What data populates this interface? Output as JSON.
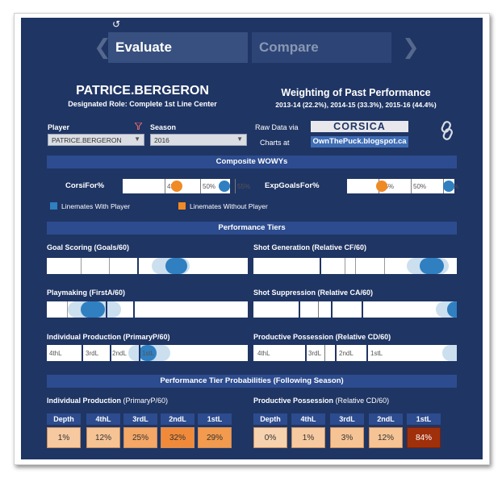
{
  "nav": {
    "undo_glyph": "↺",
    "prev_glyph": "❮",
    "next_glyph": "❯",
    "tab_evaluate": "Evaluate",
    "tab_compare": "Compare"
  },
  "player": {
    "name": "PATRICE.BERGERON",
    "role": "Designated Role: Complete 1st Line Center"
  },
  "weighting": {
    "title": "Weighting of Past Performance",
    "subtitle": "2013-14 (22.2%), 2014-15 (33.3%), 2015-16 (44.4%)"
  },
  "filters": {
    "player_label": "Player",
    "player_value": "PATRICE.BERGERON",
    "season_label": "Season",
    "season_value": "2016"
  },
  "links": {
    "raw_data_label": "Raw Data via",
    "corsica": "CORSICA",
    "charts_label": "Charts at",
    "charts_link": "OwnThePuck.blogspot.ca"
  },
  "sections": {
    "wowy": "Composite WOWYs",
    "tiers": "Performance Tiers",
    "prob": "Performance Tier Probabilities (Following Season)"
  },
  "wowy": {
    "corsi_label": "CorsiFor%",
    "xg_label": "ExpGoalsFor%",
    "tick_labels": [
      "45%",
      "50%",
      "55%"
    ],
    "corsi_with": 0.552,
    "corsi_without": 0.467,
    "xg_with": 0.577,
    "xg_without": 0.455
  },
  "legend": {
    "with": "Linemates With Player",
    "without": "Linemates Without Player"
  },
  "tiers": {
    "goal_scoring": {
      "title": "Goal Scoring",
      "sub": "(Goals/60)"
    },
    "shot_generation": {
      "title": "Shot Generation",
      "sub": "(Relative CF/60)"
    },
    "playmaking": {
      "title": "Playmaking",
      "sub": "(FirstA/60)"
    },
    "shot_suppression": {
      "title": "Shot Suppression",
      "sub": "(Relative CA/60)"
    },
    "indiv_production": {
      "title": "Individual Production",
      "sub": "(PrimaryP/60)",
      "levels": [
        "4thL",
        "3rdL",
        "2ndL",
        "1stL"
      ]
    },
    "productive_possession": {
      "title": "Productive Possession",
      "sub": "(Relative CD/60)",
      "levels": [
        "4thL",
        "3rdL",
        "2ndL",
        "1stL"
      ]
    }
  },
  "probabilities": {
    "indiv": {
      "title": "Individual Production",
      "sub": "(PrimaryP/60)",
      "headers": [
        "Depth",
        "4thL",
        "3rdL",
        "2ndL",
        "1stL"
      ],
      "values": [
        "1%",
        "12%",
        "25%",
        "32%",
        "29%"
      ]
    },
    "poss": {
      "title": "Productive Possession",
      "sub": "(Relative CD/60)",
      "headers": [
        "Depth",
        "4thL",
        "3rdL",
        "2ndL",
        "1stL"
      ],
      "values": [
        "0%",
        "1%",
        "3%",
        "12%",
        "84%"
      ]
    }
  },
  "colors": {
    "background": "#1f3564",
    "with_player": "#2f7fc1",
    "without_player": "#f08a24",
    "cell_low": "#f6c9a0",
    "cell_mid": "#f4a766",
    "cell_high": "#f08a3a",
    "cell_top": "#a0300c"
  }
}
